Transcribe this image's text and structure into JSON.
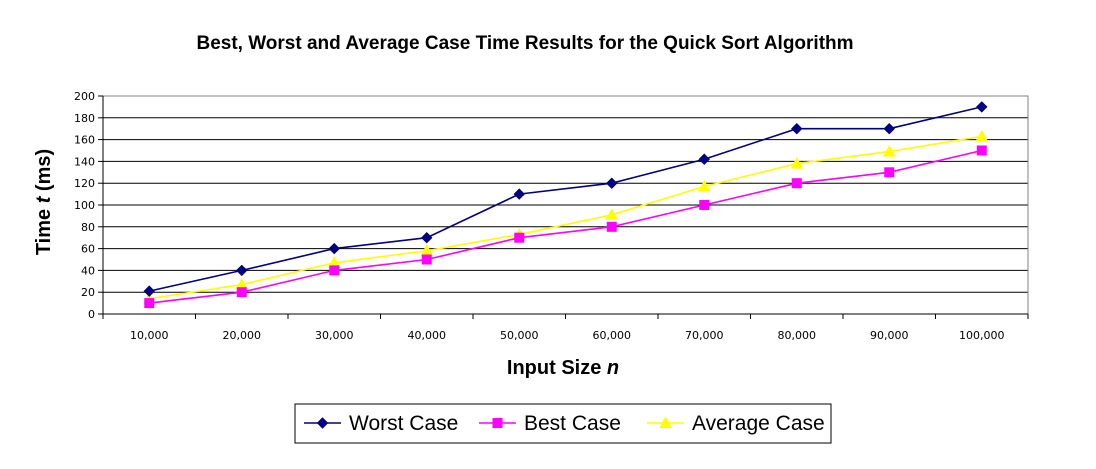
{
  "chart_data": {
    "type": "line",
    "title": "Best, Worst and Average Case Time Results for the Quick Sort Algorithm",
    "xlabel_prefix": "Input Size ",
    "xlabel_var": "n",
    "ylabel_prefix": "Time ",
    "ylabel_var": "t",
    "ylabel_suffix": " (ms)",
    "categories": [
      "10,000",
      "20,000",
      "30,000",
      "40,000",
      "50,000",
      "60,000",
      "70,000",
      "80,000",
      "90,000",
      "100,000"
    ],
    "ylim": [
      0,
      200
    ],
    "yticks": [
      0,
      20,
      40,
      60,
      80,
      100,
      120,
      140,
      160,
      180,
      200
    ],
    "grid": true,
    "legend_position": "bottom",
    "series": [
      {
        "name": "Worst Case",
        "color": "#000080",
        "marker": "diamond",
        "values": [
          21,
          40,
          60,
          70,
          110,
          120,
          142,
          170,
          170,
          190
        ]
      },
      {
        "name": "Best Case",
        "color": "#ff00ff",
        "marker": "square",
        "values": [
          10,
          20,
          40,
          50,
          70,
          80,
          100,
          120,
          130,
          150
        ]
      },
      {
        "name": "Average Case",
        "color": "#ffff00",
        "marker": "triangle",
        "values": [
          14,
          27,
          47,
          58,
          73,
          91,
          117,
          138,
          149,
          163
        ]
      }
    ]
  }
}
